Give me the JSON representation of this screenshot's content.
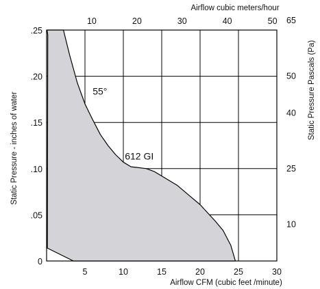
{
  "chart_data": {
    "type": "area",
    "x_bottom": {
      "label": "Airflow  CFM (cubic feet /minute)",
      "range": [
        0,
        30
      ],
      "ticks": [
        5,
        10,
        15,
        20,
        25,
        30
      ],
      "tick_labels": [
        "5",
        "10",
        "15",
        "20",
        "25",
        "30"
      ]
    },
    "x_top": {
      "label": "Airflow cubic meters/hour",
      "range": [
        0,
        50.97
      ],
      "ticks": [
        10,
        20,
        30,
        40,
        50
      ],
      "tick_labels": [
        "10",
        "20",
        "30",
        "40",
        "50"
      ]
    },
    "y_left": {
      "label": "Static Pressure - inches of water",
      "range": [
        0,
        0.25
      ],
      "ticks": [
        0,
        0.05,
        0.1,
        0.15,
        0.2,
        0.25
      ],
      "tick_labels": [
        "0",
        ".05",
        ".10",
        ".15",
        ".20",
        ".25"
      ]
    },
    "y_right": {
      "label": "Static Pressure Pascals (Pa)",
      "range": [
        0,
        62.2
      ],
      "ticks": [
        10,
        25,
        40,
        50,
        65
      ],
      "tick_labels": [
        "10",
        "25",
        "40",
        "50",
        "65"
      ]
    },
    "grid": true,
    "fill_color": "#d4d4d8",
    "line_color": "#000000",
    "series": [
      {
        "name": "612 GI",
        "upper_curve": [
          [
            0.05,
            0.25
          ],
          [
            2.2,
            0.25
          ],
          [
            3.0,
            0.223
          ],
          [
            4.0,
            0.193
          ],
          [
            5.0,
            0.17
          ],
          [
            6.0,
            0.153
          ],
          [
            7.0,
            0.137
          ],
          [
            8.0,
            0.125
          ],
          [
            9.0,
            0.115
          ],
          [
            10.0,
            0.107
          ],
          [
            11.0,
            0.102
          ],
          [
            12.0,
            0.101
          ],
          [
            13.0,
            0.1
          ],
          [
            14.0,
            0.097
          ],
          [
            15.0,
            0.092
          ],
          [
            17.0,
            0.082
          ],
          [
            19.0,
            0.068
          ],
          [
            20.0,
            0.061
          ],
          [
            22.0,
            0.043
          ],
          [
            23.0,
            0.033
          ],
          [
            24.0,
            0.017
          ],
          [
            24.6,
            0.0
          ]
        ],
        "lower_curve": [
          [
            24.6,
            0.0
          ],
          [
            5.0,
            0.0
          ],
          [
            3.5,
            0.0
          ],
          [
            0.1,
            0.014
          ],
          [
            0.15,
            0.245
          ]
        ]
      }
    ],
    "annotations": [
      {
        "text": "55°",
        "x": 6.0,
        "y": 0.18
      },
      {
        "text": "612 GI",
        "x": 10.2,
        "y": 0.11
      }
    ]
  }
}
